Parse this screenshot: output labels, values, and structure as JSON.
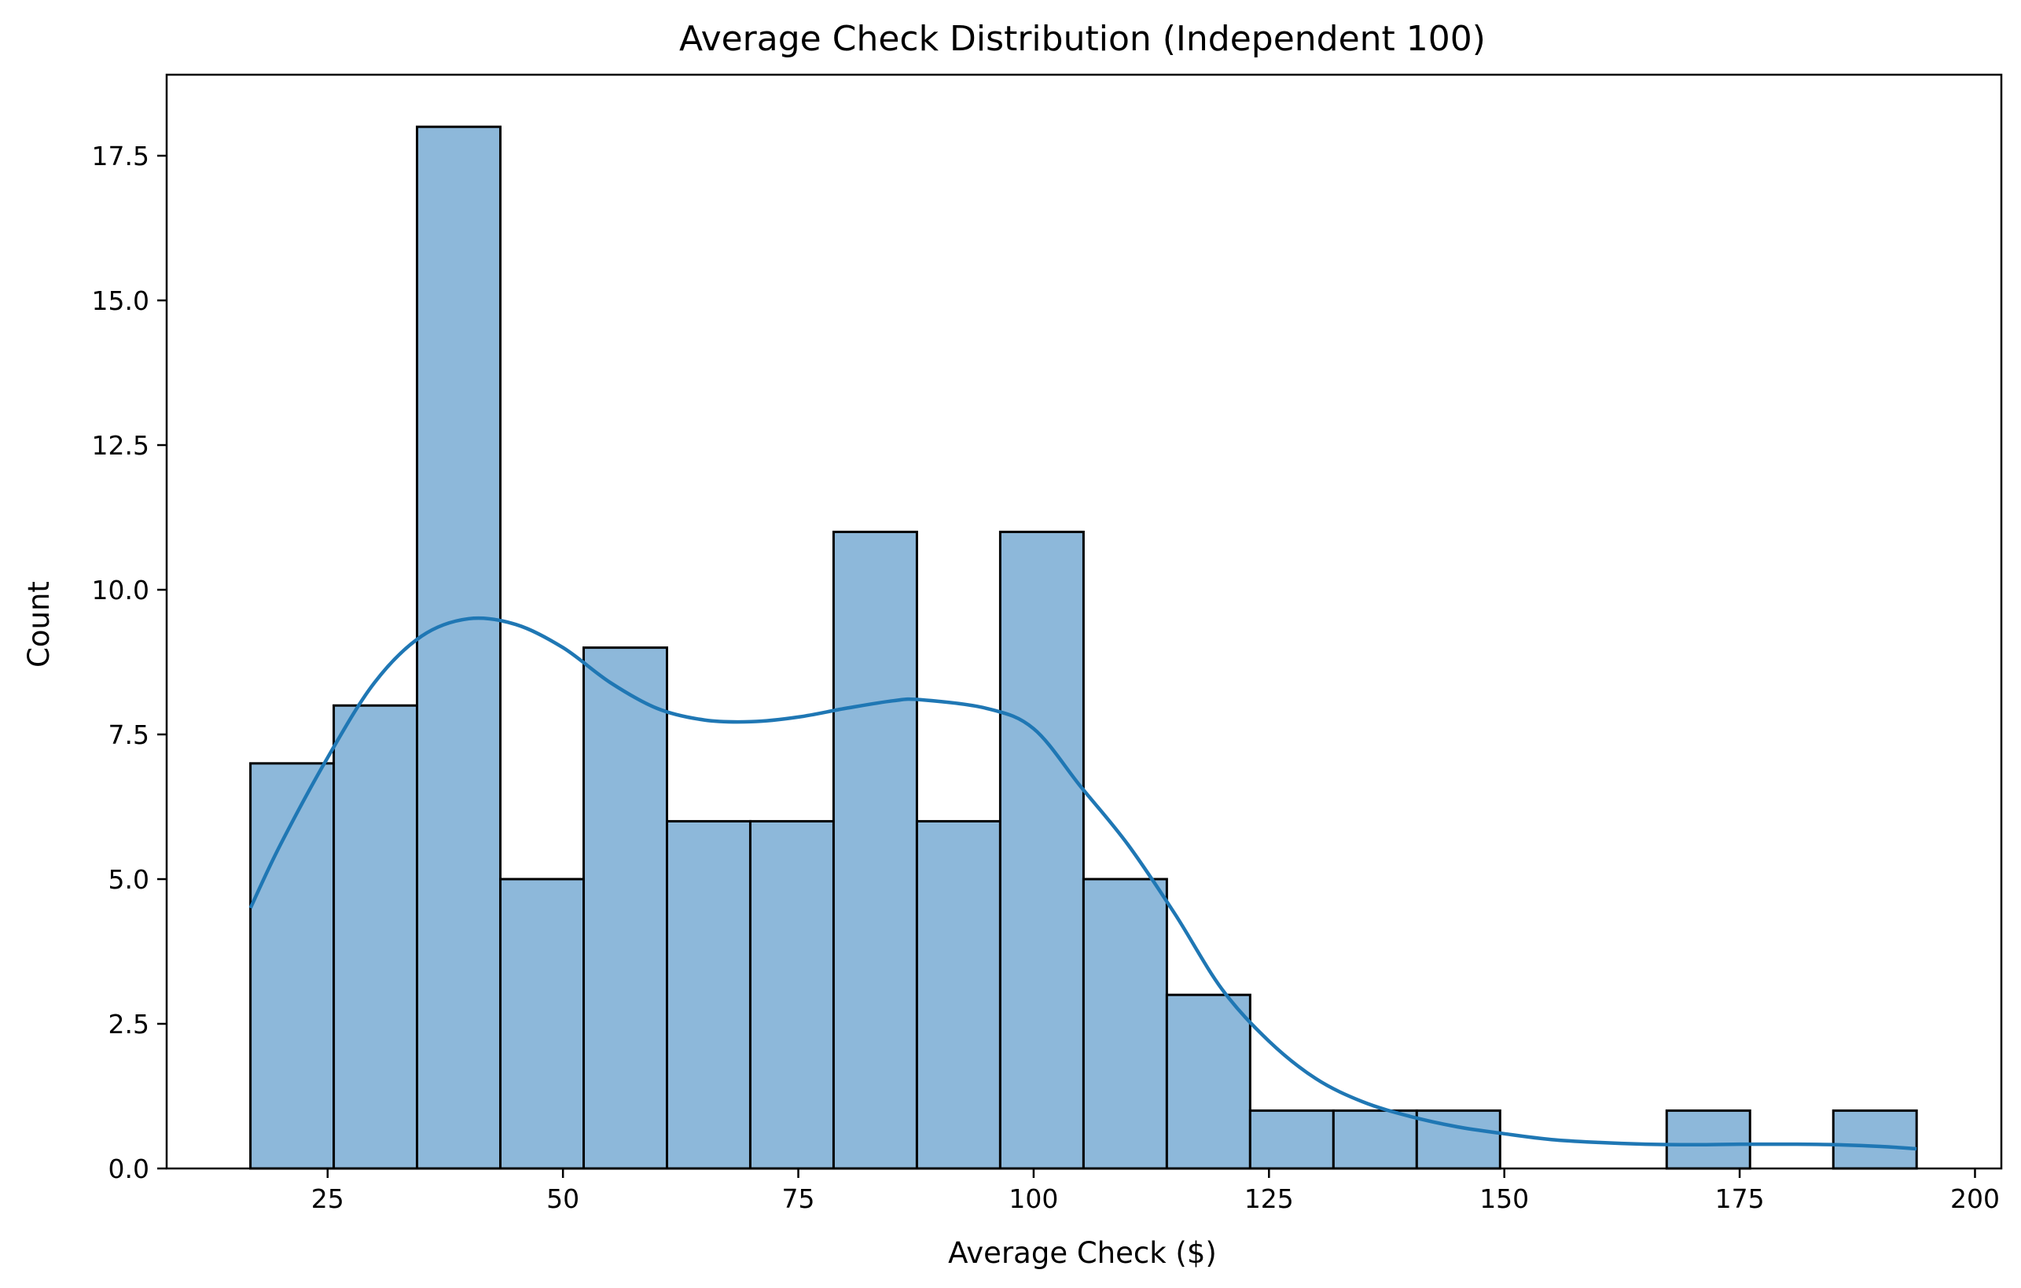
{
  "chart_data": {
    "type": "bar",
    "subtype": "histogram",
    "title": "Average Check Distribution (Independent 100)",
    "xlabel": "Average Check ($)",
    "ylabel": "Count",
    "xlim": [
      7.9,
      202.8
    ],
    "ylim": [
      0,
      18.9
    ],
    "xticks": [
      25,
      50,
      75,
      100,
      125,
      150,
      175,
      200
    ],
    "yticks": [
      0.0,
      2.5,
      5.0,
      7.5,
      10.0,
      12.5,
      15.0,
      17.5
    ],
    "ytick_labels": [
      "0.0",
      "2.5",
      "5.0",
      "7.5",
      "10.0",
      "12.5",
      "15.0",
      "17.5"
    ],
    "bin_edges": [
      16.8,
      25.65,
      34.5,
      43.35,
      52.2,
      61.05,
      69.9,
      78.75,
      87.6,
      96.45,
      105.3,
      114.15,
      123.0,
      131.85,
      140.7,
      149.55,
      158.4,
      167.25,
      176.1,
      184.95,
      193.8
    ],
    "counts": [
      7,
      8,
      18,
      5,
      9,
      6,
      6,
      11,
      6,
      11,
      5,
      3,
      1,
      1,
      1,
      0,
      0,
      1,
      0,
      1
    ],
    "kde": {
      "x": [
        16.8,
        20,
        25,
        30,
        35,
        40,
        45,
        50,
        55,
        60,
        65,
        70,
        75,
        80,
        85,
        88,
        95,
        100,
        105,
        110,
        115,
        120,
        125,
        130,
        135,
        140,
        145,
        150,
        155,
        160,
        165,
        170,
        175,
        180,
        185,
        190,
        193.8
      ],
      "y": [
        4.5,
        5.6,
        7.1,
        8.4,
        9.2,
        9.5,
        9.4,
        9.0,
        8.4,
        7.95,
        7.75,
        7.72,
        7.8,
        7.95,
        8.08,
        8.1,
        7.95,
        7.6,
        6.6,
        5.6,
        4.4,
        3.1,
        2.2,
        1.55,
        1.15,
        0.9,
        0.72,
        0.6,
        0.5,
        0.45,
        0.42,
        0.41,
        0.42,
        0.42,
        0.41,
        0.38,
        0.34
      ]
    },
    "colors": {
      "bar_fill": "#8db8da",
      "bar_edge": "#000000",
      "kde_line": "#1f77b4"
    },
    "grid": false,
    "legend": "none"
  }
}
